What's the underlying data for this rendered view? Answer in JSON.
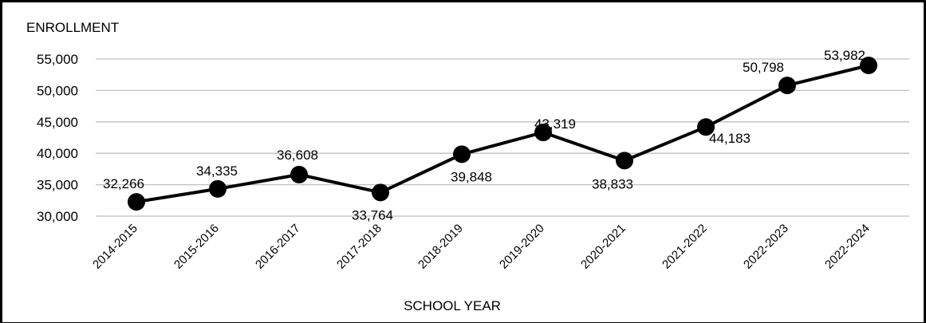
{
  "chart_data": {
    "type": "line",
    "ylabel": "ENROLLMENT",
    "xlabel": "SCHOOL YEAR",
    "categories": [
      "2014-2015",
      "2015-2016",
      "2016-2017",
      "2017-2018",
      "2018-2019",
      "2019-2020",
      "2020-2021",
      "2021-2022",
      "2022-2023",
      "2022-2024"
    ],
    "series": [
      {
        "values": [
          32266,
          34335,
          36608,
          33764,
          39848,
          43319,
          38833,
          44183,
          50798,
          53982
        ]
      }
    ],
    "data_labels": [
      "32,266",
      "34,335",
      "36,608",
      "33,764",
      "39,848",
      "43,319",
      "38,833",
      "44,183",
      "50,798",
      "53,982"
    ],
    "y_ticks": [
      30000,
      35000,
      40000,
      45000,
      50000,
      55000
    ],
    "y_tick_labels": [
      "30,000",
      "35,000",
      "40,000",
      "45,000",
      "50,000",
      "55,000"
    ],
    "ylim": [
      30000,
      55000
    ],
    "grid": true,
    "legend": "none",
    "colors": {
      "line": "#000000",
      "marker": "#000000",
      "grid": "#bfbfbf"
    }
  }
}
